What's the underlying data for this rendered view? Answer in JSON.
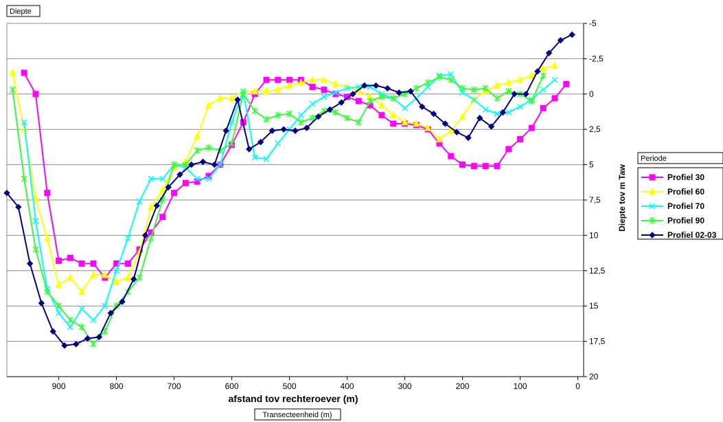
{
  "chart_data": {
    "type": "line",
    "title": "Diepte",
    "xlabel": "afstand tov rechteroever (m)",
    "xlabel_box": "Transecteenheid (m)",
    "ylabel": "Diepte tov m Taw",
    "xlim": [
      990,
      -10
    ],
    "ylim": [
      20,
      -5
    ],
    "x_reversed": true,
    "y_reversed": true,
    "x_ticks": [
      "900",
      "800",
      "700",
      "600",
      "500",
      "400",
      "300",
      "200",
      "100",
      "0"
    ],
    "x_tick_values": [
      900,
      800,
      700,
      600,
      500,
      400,
      300,
      200,
      100,
      0
    ],
    "y_ticks": [
      "-5",
      "-2,5",
      "0",
      "2,5",
      "5",
      "7,5",
      "10",
      "12,5",
      "15",
      "17,5",
      "20"
    ],
    "y_tick_values": [
      -5,
      -2.5,
      0,
      2.5,
      5,
      7.5,
      10,
      12.5,
      15,
      17.5,
      20
    ],
    "grid": "horizontal",
    "legend_title": "Periode",
    "legend_position": "right",
    "series": [
      {
        "name": "Profiel 30",
        "color": "#ff00ff",
        "marker": "square",
        "x": [
          960,
          940,
          920,
          900,
          880,
          860,
          840,
          820,
          800,
          780,
          760,
          740,
          720,
          700,
          680,
          660,
          640,
          620,
          600,
          580,
          560,
          540,
          520,
          500,
          480,
          460,
          440,
          420,
          400,
          380,
          360,
          340,
          320,
          300,
          280,
          260,
          240,
          220,
          200,
          180,
          160,
          140,
          120,
          100,
          80,
          60,
          40,
          20
        ],
        "y": [
          -1.5,
          0,
          7,
          11.8,
          11.6,
          12,
          12,
          13,
          12,
          12,
          11,
          9.8,
          8.7,
          7,
          6.3,
          6.2,
          5.8,
          5,
          3.6,
          2,
          0,
          -1,
          -1,
          -1,
          -1,
          -0.5,
          -0.3,
          0,
          0.2,
          0.5,
          0.8,
          1.5,
          2.1,
          2.1,
          2.2,
          2.5,
          3.5,
          4.4,
          5,
          5.1,
          5.1,
          5.1,
          3.9,
          3.2,
          2.4,
          1,
          0.3,
          -0.7
        ]
      },
      {
        "name": "Profiel 60",
        "color": "#ffff00",
        "marker": "triangle",
        "x": [
          980,
          960,
          940,
          920,
          900,
          880,
          860,
          840,
          820,
          800,
          780,
          760,
          740,
          720,
          700,
          680,
          660,
          640,
          620,
          600,
          580,
          560,
          540,
          520,
          500,
          480,
          460,
          440,
          420,
          400,
          380,
          360,
          340,
          320,
          300,
          280,
          260,
          240,
          220,
          200,
          180,
          160,
          140,
          120,
          100,
          80,
          60,
          40
        ],
        "y": [
          -1.5,
          2.5,
          7.4,
          10.2,
          13.5,
          13,
          14,
          12.8,
          12.8,
          13.3,
          13,
          11.2,
          8,
          6.8,
          5.2,
          4.8,
          3,
          0.8,
          0.3,
          0.3,
          -0.2,
          -0.2,
          -0.2,
          -0.3,
          -0.6,
          -0.8,
          -1,
          -1,
          -0.7,
          -0.5,
          -0.2,
          0.2,
          0.8,
          1.5,
          2,
          2.1,
          2.4,
          3.2,
          2.6,
          1.6,
          0.4,
          -0.2,
          -0.6,
          -0.8,
          -1,
          -1.3,
          -1.8,
          -2
        ]
      },
      {
        "name": "Profiel 70",
        "color": "#00ffff",
        "marker": "x",
        "x": [
          960,
          940,
          920,
          900,
          880,
          860,
          840,
          820,
          800,
          780,
          760,
          740,
          720,
          700,
          680,
          660,
          640,
          620,
          600,
          580,
          560,
          540,
          520,
          500,
          480,
          460,
          440,
          420,
          400,
          380,
          360,
          340,
          320,
          300,
          280,
          260,
          240,
          220,
          200,
          180,
          160,
          140,
          120,
          100,
          80,
          60,
          40
        ],
        "y": [
          2,
          9,
          13.8,
          15.5,
          16.5,
          15.2,
          16,
          15,
          12.5,
          10.2,
          7.6,
          6,
          6,
          5,
          5.2,
          6,
          6,
          5,
          2,
          -0.2,
          4.5,
          4.6,
          3.5,
          2.5,
          1.5,
          0.7,
          0.2,
          -0.1,
          -0.4,
          -0.5,
          -0.5,
          0,
          0.3,
          1,
          0.3,
          -0.5,
          -1.3,
          -1.4,
          -0.1,
          0.4,
          1.1,
          1.4,
          1.3,
          0.9,
          0.4,
          -0.3,
          -1
        ]
      },
      {
        "name": "Profiel 90",
        "color": "#33ff33",
        "marker": "star",
        "x": [
          980,
          960,
          940,
          920,
          900,
          880,
          860,
          840,
          820,
          800,
          780,
          760,
          740,
          720,
          700,
          680,
          660,
          640,
          620,
          600,
          580,
          560,
          540,
          520,
          500,
          480,
          460,
          440,
          420,
          400,
          380,
          360,
          340,
          320,
          300,
          280,
          260,
          240,
          220,
          200,
          180,
          160,
          140,
          120,
          100,
          80,
          60
        ],
        "y": [
          -0.3,
          6,
          11,
          14,
          15,
          16,
          16.5,
          17.7,
          16.8,
          15,
          14,
          13,
          10.2,
          7.5,
          5,
          5,
          4,
          3.8,
          4,
          3.5,
          0,
          1.2,
          1.8,
          1.5,
          1.4,
          2,
          1.7,
          1.2,
          1.3,
          1.7,
          2,
          0.5,
          0.2,
          0.3,
          0,
          -0.4,
          -0.8,
          -1.2,
          -1,
          -0.4,
          -0.3,
          -0.4,
          0.3,
          -0.2,
          0,
          0.5,
          -1.3
        ]
      },
      {
        "name": "Profiel 02-03",
        "color": "#000080",
        "marker": "diamond",
        "x": [
          990,
          970,
          950,
          930,
          910,
          890,
          870,
          850,
          830,
          810,
          790,
          770,
          750,
          730,
          710,
          690,
          670,
          650,
          630,
          610,
          590,
          570,
          550,
          530,
          510,
          490,
          470,
          450,
          430,
          410,
          390,
          370,
          350,
          330,
          310,
          290,
          270,
          250,
          230,
          210,
          190,
          170,
          150,
          130,
          110,
          90,
          70,
          50,
          30,
          10
        ],
        "y": [
          7,
          8,
          12,
          14.8,
          16.8,
          17.8,
          17.7,
          17.3,
          17.2,
          15.5,
          14.7,
          13.1,
          10,
          7.9,
          6.6,
          5.7,
          5,
          4.8,
          5,
          2.6,
          0.4,
          3.9,
          3.4,
          2.6,
          2.5,
          2.6,
          2.4,
          1.6,
          1.1,
          0.6,
          0,
          -0.6,
          -0.6,
          -0.4,
          -0.1,
          -0.2,
          0.9,
          1.4,
          2.1,
          2.7,
          3.1,
          1.7,
          2.3,
          1.3,
          0,
          0,
          -1.6,
          -2.9,
          -3.8,
          -4.2
        ]
      }
    ]
  }
}
